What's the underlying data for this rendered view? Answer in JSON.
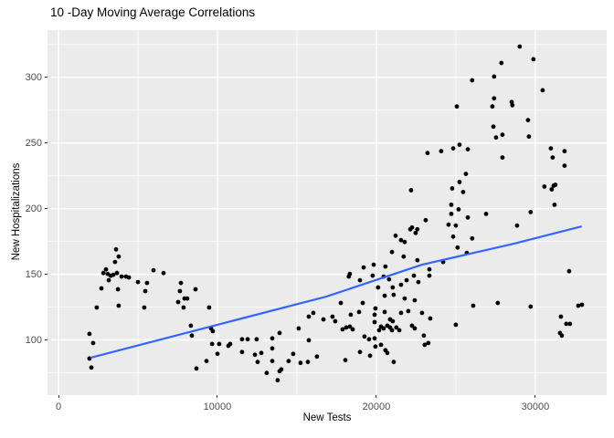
{
  "title": "10 -Day Moving Average Correlations",
  "colors": {
    "page_bg": "#FFFFFF",
    "panel_bg": "#EBEBEB",
    "grid": "#FFFFFF",
    "point": "#000000",
    "trend": "#3366FF",
    "axis_text": "#4D4D4D",
    "title_text": "#000000",
    "tick_mark": "#333333"
  },
  "chart_data": {
    "type": "scatter",
    "title": "10 -Day Moving Average Correlations",
    "xlabel": "New Tests",
    "ylabel": "New Hospitalizations",
    "legend": "none",
    "grid": true,
    "xlim": [
      -690,
      34490
    ],
    "ylim": [
      58,
      336
    ],
    "x_ticks": [
      0,
      10000,
      20000,
      30000
    ],
    "x_tick_labels": [
      "0",
      "10000",
      "20000",
      "30000"
    ],
    "x_minor": [
      5000,
      15000,
      25000
    ],
    "y_ticks": [
      100,
      150,
      200,
      250,
      300
    ],
    "y_tick_labels": [
      "100",
      "150",
      "200",
      "250",
      "300"
    ],
    "y_minor": [
      75,
      125,
      175,
      225,
      275,
      325
    ],
    "trend_line": {
      "type": "smooth",
      "color": "#3366FF",
      "points": [
        [
          2070,
          86.6
        ],
        [
          11090,
          115
        ],
        [
          16840,
          133
        ],
        [
          22870,
          157.3
        ],
        [
          28620,
          173.2
        ],
        [
          32870,
          186.4
        ]
      ]
    },
    "points": [
      [
        3620,
        169
      ],
      [
        3790,
        163.5
      ],
      [
        3560,
        159.4
      ],
      [
        2990,
        153.8
      ],
      [
        2820,
        151
      ],
      [
        3100,
        150.3
      ],
      [
        3280,
        148.9
      ],
      [
        3450,
        149.6
      ],
      [
        3680,
        151
      ],
      [
        3160,
        145.5
      ],
      [
        3970,
        148.3
      ],
      [
        4250,
        148.3
      ],
      [
        4430,
        147.6
      ],
      [
        2700,
        139.3
      ],
      [
        3740,
        138.6
      ],
      [
        5000,
        144.1
      ],
      [
        5570,
        143.4
      ],
      [
        5980,
        153.1
      ],
      [
        6610,
        151
      ],
      [
        5460,
        137.2
      ],
      [
        7700,
        143.4
      ],
      [
        7640,
        137.2
      ],
      [
        8620,
        138.6
      ],
      [
        7530,
        128.9
      ],
      [
        8100,
        131.6
      ],
      [
        7870,
        124.7
      ],
      [
        9480,
        124.7
      ],
      [
        2410,
        124.7
      ],
      [
        3790,
        126.1
      ],
      [
        5400,
        124.7
      ],
      [
        1950,
        104.6
      ],
      [
        2180,
        97.7
      ],
      [
        8330,
        110.9
      ],
      [
        1950,
        85.9
      ],
      [
        2070,
        79
      ],
      [
        7930,
        131.6
      ],
      [
        8390,
        103.3
      ],
      [
        9600,
        108.8
      ],
      [
        9710,
        106.7
      ],
      [
        9660,
        97
      ],
      [
        10110,
        97
      ],
      [
        10690,
        95.6
      ],
      [
        10800,
        97
      ],
      [
        10000,
        89.4
      ],
      [
        9310,
        83.9
      ],
      [
        8680,
        78.3
      ],
      [
        18270,
        148.3
      ],
      [
        18970,
        145.5
      ],
      [
        19770,
        149
      ],
      [
        20800,
        146.2
      ],
      [
        20460,
        148.3
      ],
      [
        21550,
        142
      ],
      [
        21030,
        140
      ],
      [
        20110,
        140
      ],
      [
        20520,
        133.7
      ],
      [
        21090,
        134.4
      ],
      [
        21780,
        131.6
      ],
      [
        22410,
        130.2
      ],
      [
        22360,
        149
      ],
      [
        17760,
        128.2
      ],
      [
        19140,
        128.2
      ],
      [
        16030,
        120.6
      ],
      [
        15750,
        117.8
      ],
      [
        16670,
        115.7
      ],
      [
        17240,
        117.8
      ],
      [
        17410,
        114.3
      ],
      [
        18390,
        119.2
      ],
      [
        18910,
        121.3
      ],
      [
        17870,
        108.1
      ],
      [
        18100,
        109.5
      ],
      [
        18330,
        110.2
      ],
      [
        18510,
        108.1
      ],
      [
        19940,
        124
      ],
      [
        19890,
        119.2
      ],
      [
        20520,
        121.3
      ],
      [
        19890,
        113.6
      ],
      [
        20170,
        107.4
      ],
      [
        20290,
        110.2
      ],
      [
        20460,
        108.8
      ],
      [
        20690,
        110.9
      ],
      [
        20860,
        109.5
      ],
      [
        20980,
        107.4
      ],
      [
        21030,
        114.3
      ],
      [
        20860,
        115.7
      ],
      [
        21260,
        109.5
      ],
      [
        21440,
        107.4
      ],
      [
        21550,
        120.6
      ],
      [
        22010,
        122
      ],
      [
        22240,
        110.9
      ],
      [
        22410,
        108.8
      ],
      [
        19250,
        102.6
      ],
      [
        19540,
        100.5
      ],
      [
        19890,
        101.2
      ],
      [
        19940,
        95
      ],
      [
        20290,
        96.3
      ],
      [
        20570,
        92.2
      ],
      [
        20690,
        90.1
      ],
      [
        21090,
        83.2
      ],
      [
        18970,
        90.8
      ],
      [
        19600,
        88
      ],
      [
        18050,
        84.6
      ],
      [
        11550,
        100.5
      ],
      [
        11900,
        100.5
      ],
      [
        12470,
        100.5
      ],
      [
        11550,
        90.8
      ],
      [
        12360,
        88.7
      ],
      [
        12760,
        90.1
      ],
      [
        12530,
        83.2
      ],
      [
        13450,
        101.2
      ],
      [
        13450,
        93.6
      ],
      [
        13450,
        83.9
      ],
      [
        13910,
        105.3
      ],
      [
        14020,
        77.6
      ],
      [
        13910,
        76.2
      ],
      [
        13100,
        74.9
      ],
      [
        13790,
        69.3
      ],
      [
        14480,
        83.9
      ],
      [
        14770,
        89.4
      ],
      [
        15110,
        108.8
      ],
      [
        15750,
        99.8
      ],
      [
        15690,
        83.2
      ],
      [
        15230,
        82.5
      ],
      [
        16260,
        87.3
      ],
      [
        21900,
        145.5
      ],
      [
        29020,
        323.5
      ],
      [
        29880,
        313.8
      ],
      [
        27870,
        311
      ],
      [
        27410,
        300.6
      ],
      [
        26030,
        297.8
      ],
      [
        30460,
        290.2
      ],
      [
        27410,
        284
      ],
      [
        28510,
        281.2
      ],
      [
        28560,
        278.8
      ],
      [
        27300,
        277.8
      ],
      [
        25060,
        277.8
      ],
      [
        29540,
        267.4
      ],
      [
        27360,
        262.5
      ],
      [
        27930,
        256.3
      ],
      [
        27530,
        254.2
      ],
      [
        29600,
        254.9
      ],
      [
        25230,
        248.7
      ],
      [
        24830,
        245.9
      ],
      [
        24080,
        243.8
      ],
      [
        25750,
        245.2
      ],
      [
        23220,
        242.4
      ],
      [
        30980,
        245.9
      ],
      [
        31840,
        243.8
      ],
      [
        27930,
        239
      ],
      [
        31090,
        239
      ],
      [
        31840,
        232.7
      ],
      [
        31150,
        217.5
      ],
      [
        31210,
        203
      ],
      [
        30570,
        216.8
      ],
      [
        31030,
        214.7
      ],
      [
        31260,
        218.2
      ],
      [
        25630,
        226.5
      ],
      [
        25230,
        220.3
      ],
      [
        24770,
        215.4
      ],
      [
        25460,
        212.7
      ],
      [
        24710,
        203
      ],
      [
        25170,
        199.5
      ],
      [
        23100,
        191.2
      ],
      [
        24710,
        196
      ],
      [
        25000,
        187.1
      ],
      [
        24540,
        187.8
      ],
      [
        25750,
        193.3
      ],
      [
        26900,
        196
      ],
      [
        29710,
        197.4
      ],
      [
        28850,
        187.1
      ],
      [
        24830,
        178.7
      ],
      [
        26030,
        177.3
      ],
      [
        25110,
        170.4
      ],
      [
        25690,
        166.3
      ],
      [
        24200,
        159.3
      ],
      [
        23330,
        153.8
      ],
      [
        22180,
        214
      ],
      [
        22240,
        185.7
      ],
      [
        22580,
        184.3
      ],
      [
        21210,
        179.4
      ],
      [
        21550,
        176
      ],
      [
        21780,
        174.6
      ],
      [
        20980,
        167
      ],
      [
        21720,
        163.5
      ],
      [
        22580,
        160.7
      ],
      [
        20570,
        155.9
      ],
      [
        19830,
        157.3
      ],
      [
        19200,
        155.2
      ],
      [
        18330,
        150.3
      ],
      [
        32130,
        152.4
      ],
      [
        22130,
        184.3
      ],
      [
        22470,
        181.5
      ],
      [
        22640,
        144.1
      ],
      [
        22870,
        120.6
      ],
      [
        23330,
        149
      ],
      [
        26090,
        126.1
      ],
      [
        27640,
        128.2
      ],
      [
        29710,
        125.4
      ],
      [
        32700,
        126.1
      ],
      [
        32930,
        126.8
      ],
      [
        23390,
        116.4
      ],
      [
        25000,
        111.6
      ],
      [
        31610,
        117.8
      ],
      [
        31950,
        112.3
      ],
      [
        32180,
        112.3
      ],
      [
        31550,
        105.3
      ],
      [
        31670,
        103.3
      ],
      [
        23040,
        96.3
      ],
      [
        23270,
        97.7
      ],
      [
        22990,
        103.3
      ]
    ]
  }
}
